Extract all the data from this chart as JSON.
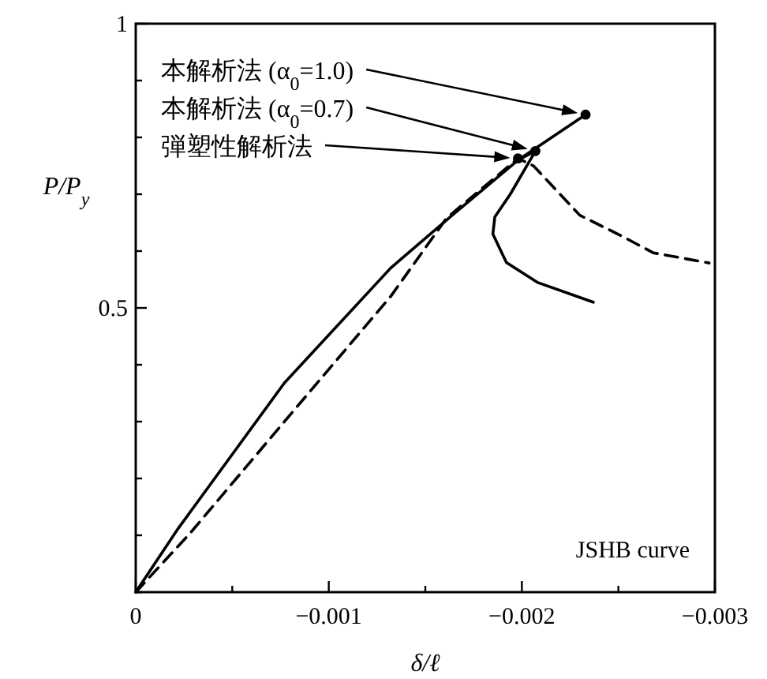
{
  "chart_data": {
    "type": "line",
    "xlabel": "δ/ℓ",
    "ylabel": "P/P$_{y}$",
    "xlim": [
      0,
      -0.003
    ],
    "ylim": [
      0,
      1
    ],
    "xticks": [
      {
        "value": 0,
        "label": "0"
      },
      {
        "value": -0.0005,
        "label": null
      },
      {
        "value": -0.001,
        "label": "−0.001"
      },
      {
        "value": -0.0015,
        "label": null
      },
      {
        "value": -0.002,
        "label": "−0.002"
      },
      {
        "value": -0.0025,
        "label": null
      },
      {
        "value": -0.003,
        "label": "−0.003"
      }
    ],
    "yticks": [
      {
        "value": 0,
        "label": null
      },
      {
        "value": 0.1,
        "label": null
      },
      {
        "value": 0.2,
        "label": null
      },
      {
        "value": 0.3,
        "label": null
      },
      {
        "value": 0.4,
        "label": null
      },
      {
        "value": 0.5,
        "label": "0.5"
      },
      {
        "value": 0.6,
        "label": null
      },
      {
        "value": 0.7,
        "label": null
      },
      {
        "value": 0.8,
        "label": null
      },
      {
        "value": 0.9,
        "label": null
      },
      {
        "value": 1,
        "label": "1"
      }
    ],
    "series": [
      {
        "color": "#000000",
        "line_style": "solid",
        "x": [
          0,
          -0.00022,
          -0.00077,
          -0.00132,
          -0.00165,
          -0.00198,
          -0.00233
        ],
        "values": [
          0,
          0.112,
          0.368,
          0.57,
          0.666,
          0.76,
          0.84
        ]
      },
      {
        "color": "#000000",
        "line_style": "solid",
        "x": [
          -0.00198,
          -0.00207,
          -0.00194,
          -0.00186,
          -0.00185,
          -0.00192,
          -0.00208,
          -0.00237
        ],
        "values": [
          0.76,
          0.776,
          0.7,
          0.66,
          0.63,
          0.58,
          0.545,
          0.51
        ]
      },
      {
        "color": "#000000",
        "line_style": "dashed",
        "x": [
          0,
          -0.00028,
          -0.00077,
          -0.00132,
          -0.00161,
          -0.00198,
          -0.00206,
          -0.0023,
          -0.00252,
          -0.00268,
          -0.00297
        ],
        "values": [
          0,
          0.103,
          0.3,
          0.52,
          0.658,
          0.763,
          0.75,
          0.663,
          0.626,
          0.597,
          0.579
        ]
      },
      {
        "type": "scatter",
        "marker": "circle",
        "color": "#000000",
        "x": [
          -0.00233,
          -0.00207,
          -0.00198
        ],
        "values": [
          0.84,
          0.776,
          0.763
        ]
      }
    ],
    "annotations": [
      "本解析法 (α$_{0}$=1.0)",
      "本解析法 (α$_{0}$=0.7)",
      "弾塑性解析法",
      "JSHB curve"
    ]
  }
}
